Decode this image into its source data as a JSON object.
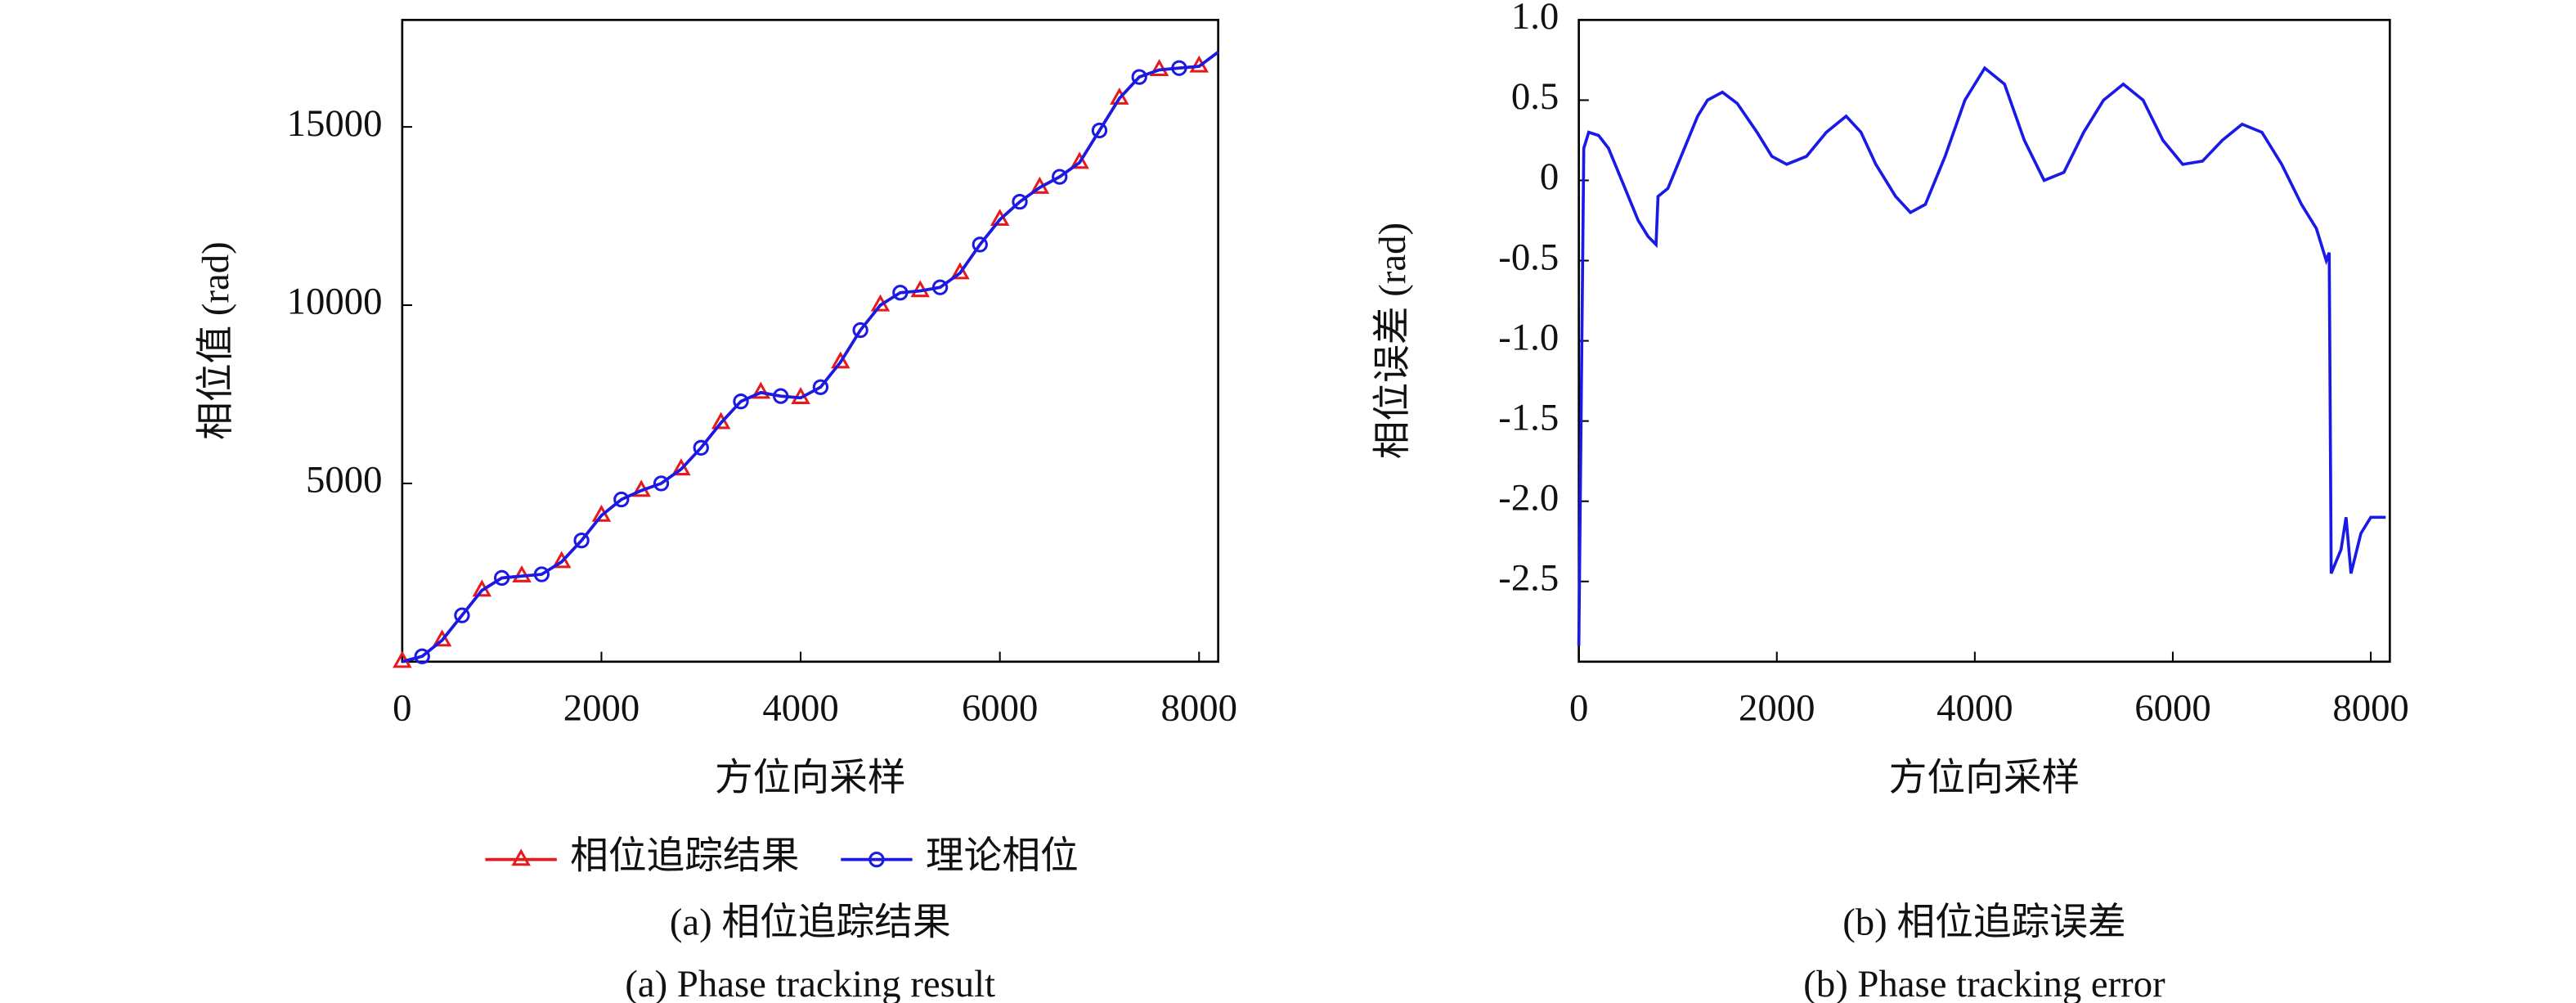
{
  "chart_data": [
    {
      "type": "line",
      "xlabel": "方位向采样",
      "ylabel": "相位值 (rad)",
      "caption": [
        "(a) 相位追踪结果",
        "(a) Phase tracking result"
      ],
      "xlim": [
        0,
        8192
      ],
      "ylim": [
        0,
        18000
      ],
      "xticks": [
        0,
        2000,
        4000,
        6000,
        8000
      ],
      "yticks": [
        5000,
        10000,
        15000
      ],
      "grid": false,
      "legend": "below",
      "x": [
        0,
        200,
        400,
        600,
        800,
        1000,
        1200,
        1400,
        1600,
        1800,
        2000,
        2200,
        2400,
        2600,
        2800,
        3000,
        3200,
        3400,
        3600,
        3800,
        4000,
        4200,
        4400,
        4600,
        4800,
        5000,
        5200,
        5400,
        5600,
        5800,
        6000,
        6200,
        6400,
        6600,
        6800,
        7000,
        7200,
        7400,
        7600,
        7800,
        8000,
        8192
      ],
      "series": [
        {
          "name": "相位追踪结果",
          "color": "#e41a1c",
          "marker": "triangle",
          "values": [
            0,
            150,
            600,
            1300,
            2000,
            2350,
            2400,
            2450,
            2800,
            3400,
            4100,
            4550,
            4800,
            5000,
            5400,
            6000,
            6700,
            7300,
            7550,
            7450,
            7400,
            7700,
            8400,
            9300,
            10000,
            10350,
            10400,
            10500,
            10900,
            11700,
            12400,
            12900,
            13300,
            13600,
            14000,
            14900,
            15800,
            16400,
            16600,
            16650,
            16700,
            17100
          ]
        },
        {
          "name": "理论相位",
          "color": "#1a1ae6",
          "marker": "circle",
          "values": [
            0,
            150,
            600,
            1300,
            2000,
            2350,
            2400,
            2450,
            2800,
            3400,
            4100,
            4550,
            4800,
            5000,
            5400,
            6000,
            6700,
            7300,
            7550,
            7450,
            7400,
            7700,
            8400,
            9300,
            10000,
            10350,
            10400,
            10500,
            10900,
            11700,
            12400,
            12900,
            13300,
            13600,
            14000,
            14900,
            15800,
            16400,
            16600,
            16650,
            16700,
            17100
          ]
        }
      ]
    },
    {
      "type": "line",
      "xlabel": "方位向采样",
      "ylabel": "相位误差 (rad)",
      "caption": [
        "(b) 相位追踪误差",
        "(b) Phase tracking error"
      ],
      "xlim": [
        0,
        8192
      ],
      "ylim": [
        -3,
        1
      ],
      "xticks": [
        0,
        2000,
        4000,
        6000,
        8000
      ],
      "yticks": [
        {
          "value": 1,
          "label": "1.0"
        },
        0.5,
        0,
        -0.5,
        {
          "value": -1,
          "label": "-1.0"
        },
        -1.5,
        {
          "value": -2,
          "label": "-2.0"
        },
        -2.5
      ],
      "grid": false,
      "x": [
        0,
        50,
        100,
        200,
        300,
        400,
        500,
        600,
        700,
        780,
        800,
        900,
        1000,
        1100,
        1200,
        1300,
        1450,
        1600,
        1800,
        1950,
        2100,
        2300,
        2500,
        2700,
        2850,
        3000,
        3200,
        3350,
        3500,
        3700,
        3900,
        4100,
        4300,
        4500,
        4700,
        4900,
        5100,
        5300,
        5500,
        5700,
        5900,
        6100,
        6300,
        6500,
        6700,
        6900,
        7100,
        7300,
        7450,
        7500,
        7550,
        7580,
        7600,
        7700,
        7750,
        7800,
        7900,
        8000,
        8150
      ],
      "series": [
        {
          "name": "相位误差",
          "color": "#1a1ae6",
          "values": [
            -2.9,
            0.2,
            0.3,
            0.28,
            0.2,
            0.05,
            -0.1,
            -0.25,
            -0.35,
            -0.4,
            -0.1,
            -0.05,
            0.1,
            0.25,
            0.4,
            0.5,
            0.55,
            0.48,
            0.3,
            0.15,
            0.1,
            0.15,
            0.3,
            0.4,
            0.3,
            0.1,
            -0.1,
            -0.2,
            -0.15,
            0.15,
            0.5,
            0.7,
            0.6,
            0.25,
            0,
            0.05,
            0.3,
            0.5,
            0.6,
            0.5,
            0.25,
            0.1,
            0.12,
            0.25,
            0.35,
            0.3,
            0.1,
            -0.15,
            -0.3,
            -0.4,
            -0.5,
            -0.45,
            -2.45,
            -2.3,
            -2.1,
            -2.45,
            -2.2,
            -2.1,
            -2.1
          ]
        }
      ]
    }
  ]
}
